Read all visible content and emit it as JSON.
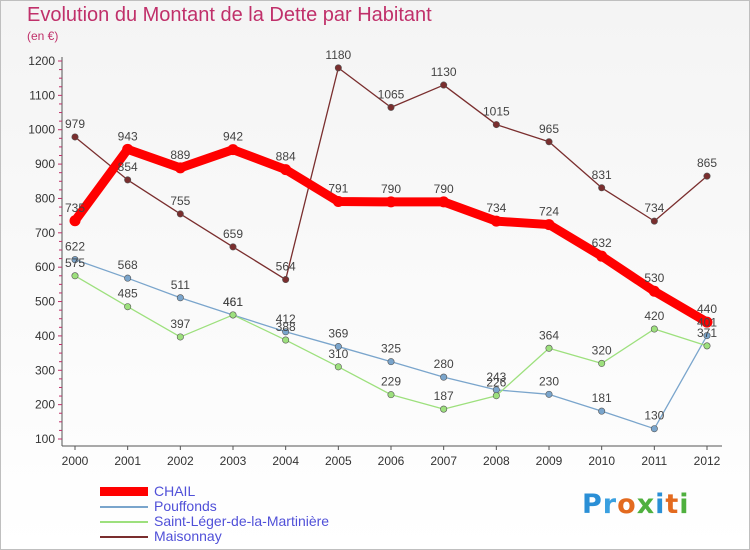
{
  "title": "Evolution du Montant de la Dette par Habitant",
  "subtitle": "(en €)",
  "logo": {
    "text": "Proxiti",
    "letter_colors": [
      "#2a8fd6",
      "#3aa0e0",
      "#e36a1f",
      "#4fb03e",
      "#2a8fd6",
      "#e36a1f",
      "#4fb03e"
    ]
  },
  "chart_data": {
    "type": "line",
    "title": "Evolution du Montant de la Dette par Habitant",
    "subtitle": "(en €)",
    "xlabel": "",
    "ylabel": "",
    "x": [
      "2000",
      "2001",
      "2002",
      "2003",
      "2004",
      "2005",
      "2006",
      "2007",
      "2008",
      "2009",
      "2010",
      "2011",
      "2012"
    ],
    "ylim": [
      100,
      1200
    ],
    "yticks": [
      100,
      200,
      300,
      400,
      500,
      600,
      700,
      800,
      900,
      1000,
      1100,
      1200
    ],
    "grid": false,
    "legend_position": "bottom-left",
    "series": [
      {
        "name": "CHAIL",
        "color": "#ff0000",
        "values": [
          735,
          943,
          889,
          942,
          884,
          791,
          790,
          790,
          734,
          724,
          632,
          530,
          440
        ],
        "labels": [
          "735",
          "943",
          "889",
          "942",
          "884",
          "791",
          "790",
          "790",
          "734",
          "724",
          "632",
          "530",
          "440"
        ]
      },
      {
        "name": "Pouffonds",
        "color": "#7aa5cc",
        "values": [
          622,
          568,
          511,
          461,
          412,
          369,
          325,
          280,
          243,
          230,
          181,
          130,
          401
        ],
        "labels": [
          "622",
          "568",
          "511",
          "461",
          "412",
          "369",
          "325",
          "280",
          "243",
          "230",
          "181",
          "130",
          "401"
        ]
      },
      {
        "name": "Saint-Léger-de-la-Martinière",
        "color": "#9de07d",
        "values": [
          575,
          485,
          397,
          461,
          388,
          310,
          229,
          187,
          226,
          364,
          320,
          420,
          371
        ],
        "labels": [
          "575",
          "485",
          "397",
          "461",
          "388",
          "310",
          "229",
          "187",
          "226",
          "364",
          "320",
          "420",
          "371"
        ]
      },
      {
        "name": "Maisonnay",
        "color": "#7a2e2e",
        "values": [
          979,
          854,
          755,
          659,
          564,
          1180,
          1065,
          1130,
          1015,
          965,
          831,
          734,
          865
        ],
        "labels": [
          "979",
          "854",
          "755",
          "659",
          "564",
          "1180",
          "1065",
          "1130",
          "1015",
          "965",
          "831",
          "734",
          "865"
        ]
      }
    ]
  }
}
